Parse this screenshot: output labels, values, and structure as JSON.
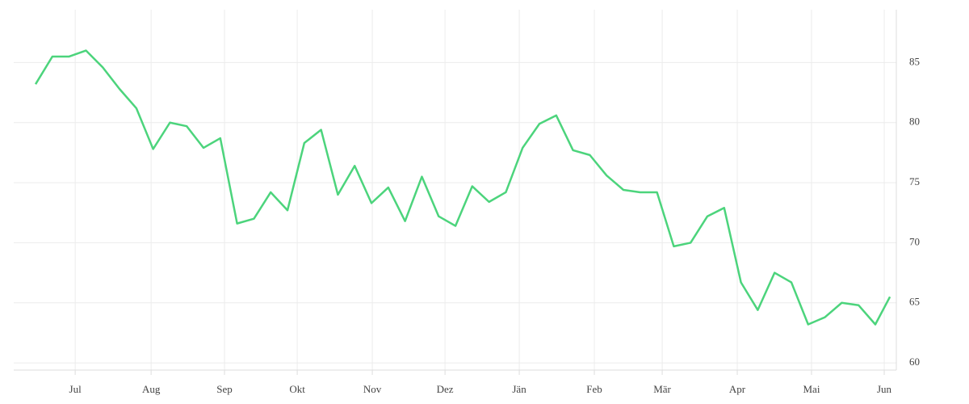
{
  "chart_data": {
    "type": "line",
    "x": [
      0,
      1,
      2,
      3,
      4,
      5,
      6,
      7,
      8,
      9,
      10,
      11,
      12,
      13,
      14,
      15,
      16,
      17,
      18,
      19,
      20,
      21,
      22,
      23,
      24,
      25,
      26,
      27,
      28,
      29,
      30,
      31,
      32,
      33,
      34,
      35,
      36,
      37,
      38,
      39,
      40,
      41,
      42,
      43,
      44,
      45,
      46,
      47,
      48,
      49,
      50,
      50.87
    ],
    "series": [
      {
        "color": "#4cd47c",
        "values": [
          83.2,
          85.5,
          85.5,
          86.0,
          84.6,
          82.8,
          81.2,
          77.8,
          80.0,
          79.7,
          77.9,
          78.7,
          71.6,
          72.0,
          74.2,
          72.7,
          78.3,
          79.4,
          74.0,
          76.4,
          73.3,
          74.6,
          71.8,
          75.5,
          72.2,
          71.4,
          74.7,
          73.4,
          74.2,
          77.9,
          79.9,
          80.6,
          77.7,
          77.3,
          75.6,
          74.4,
          74.2,
          74.2,
          69.7,
          70.0,
          72.2,
          72.9,
          66.7,
          64.4,
          67.5,
          66.7,
          63.2,
          63.8,
          65.0,
          64.8,
          63.2,
          65.5
        ]
      }
    ],
    "xlim": [
      -1.3,
      51.25
    ],
    "xticks": [
      {
        "value": 2.36,
        "label": "Jul"
      },
      {
        "value": 6.88,
        "label": "Aug"
      },
      {
        "value": 11.25,
        "label": "Sep"
      },
      {
        "value": 15.58,
        "label": "Okt"
      },
      {
        "value": 20.05,
        "label": "Nov"
      },
      {
        "value": 24.38,
        "label": "Dez"
      },
      {
        "value": 28.8,
        "label": "Jän"
      },
      {
        "value": 33.27,
        "label": "Feb"
      },
      {
        "value": 37.31,
        "label": "Mär"
      },
      {
        "value": 41.78,
        "label": "Apr"
      },
      {
        "value": 46.2,
        "label": "Mai"
      },
      {
        "value": 50.53,
        "label": "Jun"
      }
    ],
    "ylim": [
      59.4,
      89.4
    ],
    "yticks": [
      60,
      65,
      70,
      75,
      80,
      85
    ],
    "grid": true
  }
}
